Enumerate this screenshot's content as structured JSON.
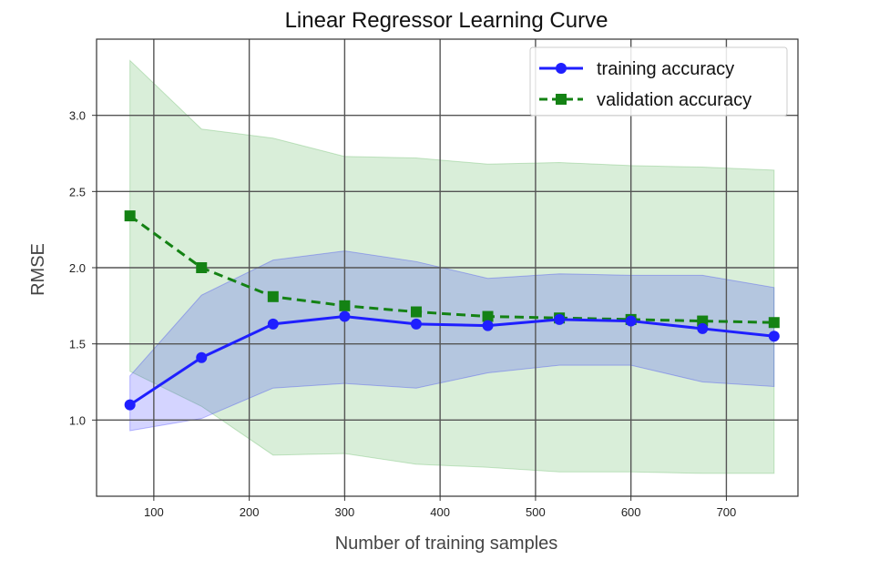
{
  "chart_data": {
    "type": "line",
    "title": "Linear Regressor Learning Curve",
    "xlabel": "Number of training samples",
    "ylabel": "RMSE",
    "xlim": [
      40,
      775
    ],
    "ylim": [
      0.5,
      3.5
    ],
    "grid": true,
    "legend_position": "top-right",
    "x_ticks": [
      100,
      200,
      300,
      400,
      500,
      600,
      700
    ],
    "y_ticks": [
      1.0,
      1.5,
      2.0,
      2.5,
      3.0
    ],
    "x_tick_labels": [
      "100",
      "200",
      "300",
      "400",
      "500",
      "600",
      "700"
    ],
    "y_tick_labels": [
      "1.0",
      "1.5",
      "2.0",
      "2.5",
      "3.0"
    ],
    "x": [
      75,
      150,
      225,
      300,
      375,
      450,
      525,
      600,
      675,
      750
    ],
    "series": [
      {
        "name": "training accuracy",
        "color": "#1f1fff",
        "marker": "circle",
        "line_style": "solid",
        "values": [
          1.1,
          1.41,
          1.63,
          1.68,
          1.63,
          1.62,
          1.66,
          1.65,
          1.6,
          1.55
        ],
        "band_upper": [
          1.29,
          1.82,
          2.05,
          2.11,
          2.04,
          1.93,
          1.96,
          1.95,
          1.95,
          1.87
        ],
        "band_lower": [
          0.93,
          1.01,
          1.21,
          1.24,
          1.21,
          1.31,
          1.36,
          1.36,
          1.25,
          1.22
        ],
        "band_color": "#0000ff"
      },
      {
        "name": "validation accuracy",
        "color": "#148214",
        "marker": "square",
        "line_style": "dashed",
        "values": [
          2.34,
          2.0,
          1.81,
          1.75,
          1.71,
          1.68,
          1.67,
          1.66,
          1.65,
          1.64
        ],
        "band_upper": [
          3.36,
          2.91,
          2.85,
          2.73,
          2.72,
          2.68,
          2.69,
          2.67,
          2.66,
          2.64
        ],
        "band_lower": [
          1.32,
          1.09,
          0.77,
          0.78,
          0.71,
          0.69,
          0.66,
          0.66,
          0.65,
          0.65
        ],
        "band_color": "#2ca02c"
      }
    ]
  }
}
